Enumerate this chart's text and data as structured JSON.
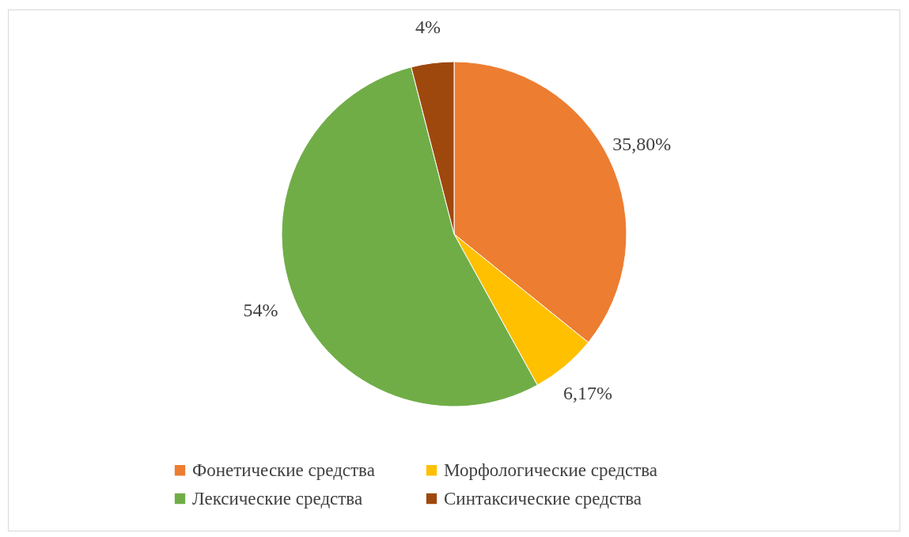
{
  "chart_data": {
    "type": "pie",
    "categories": [
      "Фонетические средства",
      "Морфологические средства",
      "Лексические средства",
      "Синтаксические средства"
    ],
    "values": [
      35.8,
      6.17,
      54,
      4
    ],
    "colors": [
      "#ed7d31",
      "#ffc000",
      "#70ad47",
      "#9e480e"
    ],
    "value_labels": [
      "35,80%",
      "6,17%",
      "54%",
      "4%"
    ],
    "legend": "bottom"
  }
}
